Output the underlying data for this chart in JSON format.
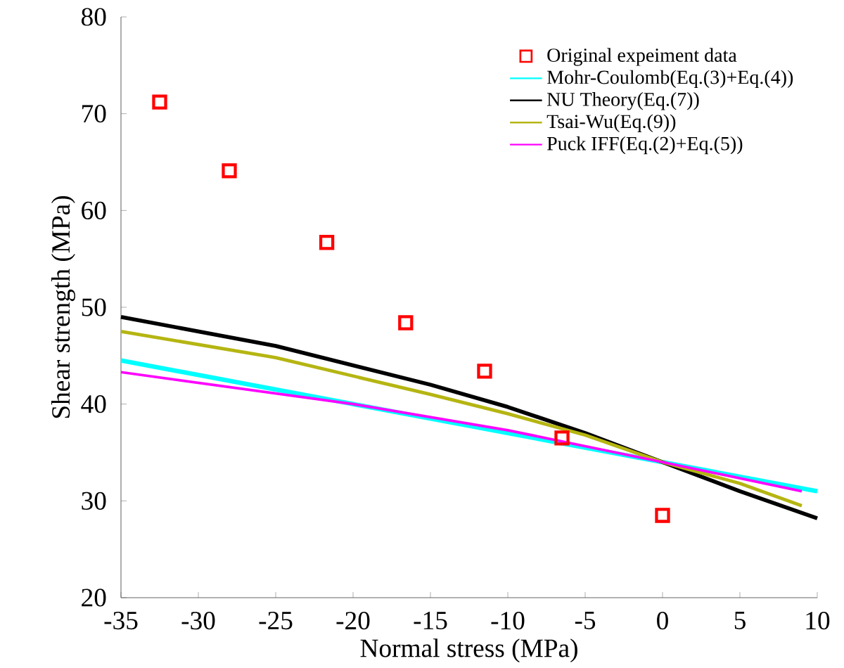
{
  "chart_data": {
    "type": "line",
    "xlabel": "Normal stress (MPa)",
    "ylabel": "Shear strength (MPa)",
    "xlim": [
      -35,
      10
    ],
    "ylim": [
      20,
      80
    ],
    "xticks": [
      -35,
      -30,
      -25,
      -20,
      -15,
      -10,
      -5,
      0,
      5,
      10
    ],
    "yticks": [
      20,
      30,
      40,
      50,
      60,
      70,
      80
    ],
    "legend": "top right",
    "grid": false,
    "series": [
      {
        "name": "Original expeiment data",
        "type": "scatter",
        "marker": "square",
        "color": "#ff0000",
        "x": [
          -32.5,
          -28,
          -21.7,
          -16.6,
          -11.5,
          -6.5,
          0
        ],
        "values": [
          71.2,
          64.1,
          56.7,
          48.4,
          43.4,
          36.5,
          28.5
        ]
      },
      {
        "name": "Mohr-Coulomb(Eq.(3)+Eq.(4))",
        "color": "#00ffff",
        "x": [
          -35,
          -20,
          -10,
          0,
          10
        ],
        "values": [
          44.5,
          40.0,
          37.0,
          34.0,
          31.0
        ]
      },
      {
        "name": "NU Theory(Eq.(7))",
        "color": "#000000",
        "x": [
          -35,
          -25,
          -15,
          -10,
          -5,
          0,
          5,
          10
        ],
        "values": [
          49.0,
          46.0,
          42.0,
          39.7,
          37.0,
          34.0,
          31.0,
          28.2
        ]
      },
      {
        "name": "Tsai-Wu(Eq.(9))",
        "color": "#b5b512",
        "x": [
          -35,
          -25,
          -15,
          -10,
          -5,
          0,
          5,
          9
        ],
        "values": [
          47.5,
          44.8,
          41.0,
          39.0,
          36.8,
          34.0,
          31.8,
          29.5
        ]
      },
      {
        "name": "Puck IFF(Eq.(2)+Eq.(5))",
        "color": "#ff00ff",
        "x": [
          -35,
          -20,
          -10,
          0,
          9
        ],
        "values": [
          43.3,
          40.0,
          37.3,
          34.0,
          31.0
        ]
      }
    ]
  }
}
